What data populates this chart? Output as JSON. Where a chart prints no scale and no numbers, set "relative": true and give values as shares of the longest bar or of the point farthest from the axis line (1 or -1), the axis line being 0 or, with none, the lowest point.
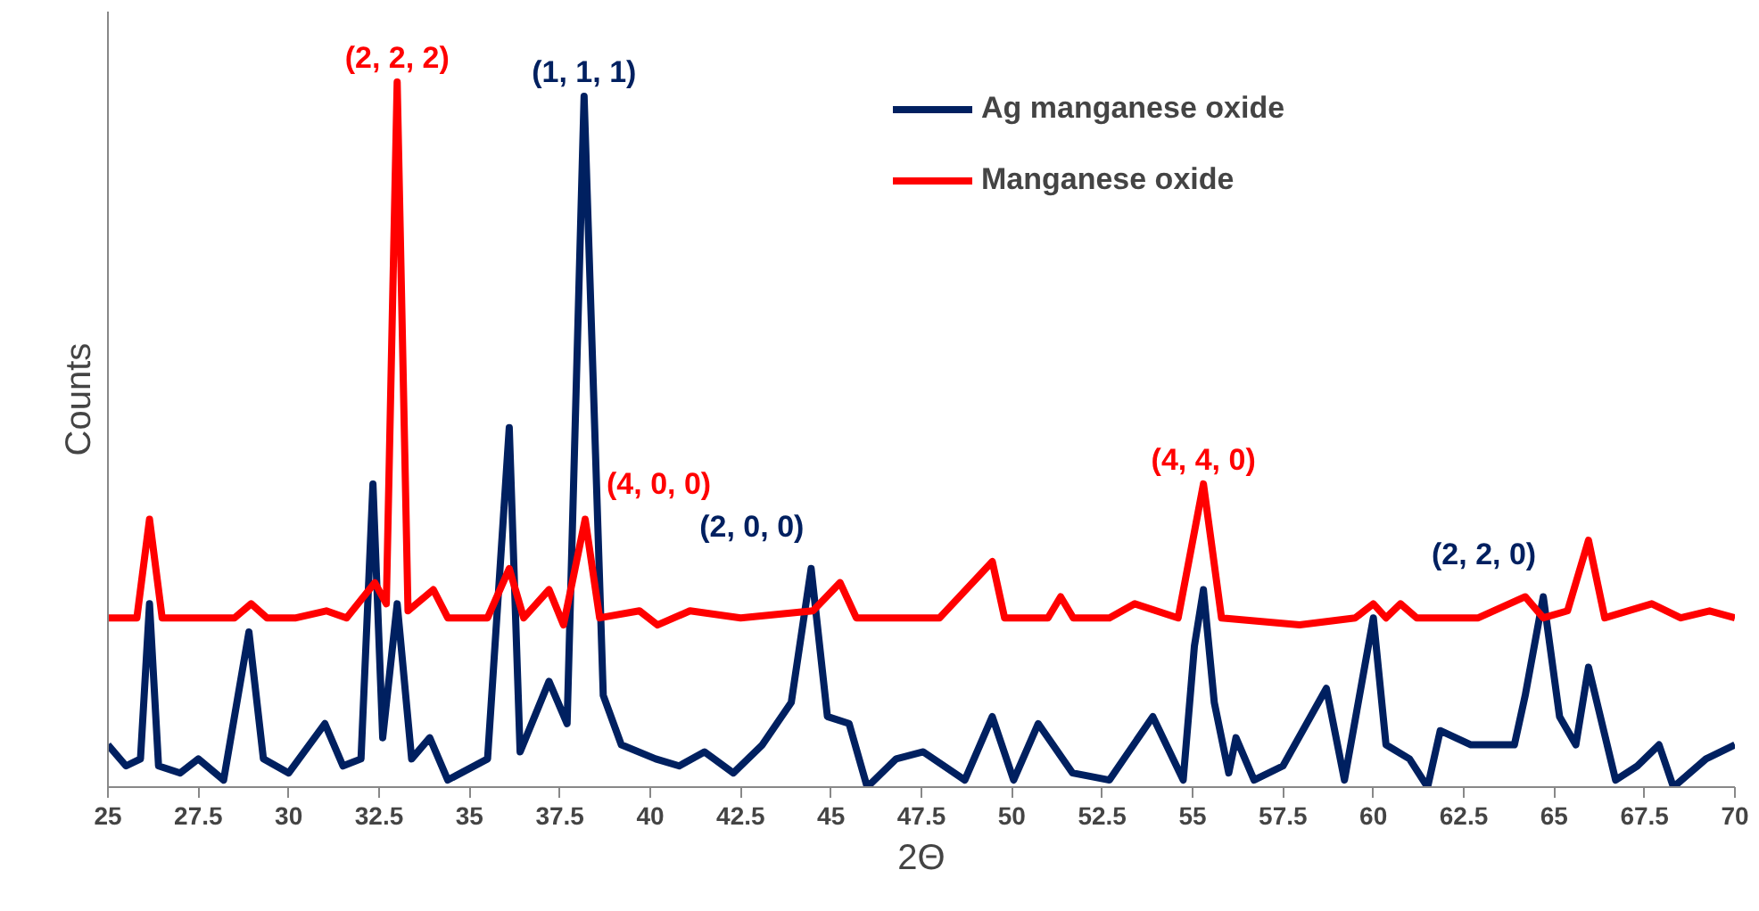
{
  "chart_data": {
    "type": "line",
    "relative": true,
    "xlabel": "2Θ",
    "ylabel": "Counts",
    "xlim": [
      25,
      70
    ],
    "xticks": [
      25,
      27.5,
      30,
      32.5,
      35,
      37.5,
      40,
      42.5,
      45,
      47.5,
      50,
      52.5,
      55,
      57.5,
      60,
      62.5,
      65,
      67.5,
      70
    ],
    "grid": false,
    "legend": "top right",
    "marker": "none",
    "line_style": "solid",
    "series": [
      {
        "name": "Ag manganese oxide",
        "color": "#002060",
        "x": [
          25,
          25.5,
          25.9,
          26.15,
          26.4,
          27,
          27.5,
          28.2,
          28.9,
          29.3,
          30,
          31.0,
          31.5,
          32.0,
          32.33,
          32.6,
          33.0,
          33.4,
          33.9,
          34.4,
          35.5,
          36.1,
          36.4,
          37.2,
          37.7,
          38.17,
          38.7,
          39.2,
          40.15,
          40.8,
          41.5,
          42.3,
          43.1,
          43.9,
          44.45,
          44.9,
          45.5,
          46.0,
          46.8,
          47.55,
          48.7,
          49.46,
          50.05,
          50.73,
          51.68,
          52.7,
          53.9,
          54.74,
          55.05,
          55.3,
          55.6,
          56.0,
          56.2,
          56.7,
          57.5,
          58.7,
          59.2,
          60.0,
          60.35,
          61.0,
          61.5,
          61.85,
          62.7,
          63.9,
          64.2,
          64.7,
          65.15,
          65.6,
          65.95,
          66.7,
          67.3,
          67.9,
          68.3,
          69.2,
          70
        ],
        "values": [
          0.06,
          0.03,
          0.04,
          0.26,
          0.03,
          0.02,
          0.04,
          0.01,
          0.22,
          0.04,
          0.02,
          0.09,
          0.03,
          0.04,
          0.43,
          0.07,
          0.26,
          0.04,
          0.07,
          0.01,
          0.04,
          0.51,
          0.05,
          0.15,
          0.09,
          0.98,
          0.13,
          0.06,
          0.04,
          0.03,
          0.05,
          0.02,
          0.06,
          0.12,
          0.31,
          0.1,
          0.09,
          0,
          0.04,
          0.05,
          0.01,
          0.1,
          0.01,
          0.09,
          0.02,
          0.01,
          0.1,
          0.01,
          0.2,
          0.28,
          0.12,
          0.02,
          0.07,
          0.01,
          0.03,
          0.14,
          0.01,
          0.24,
          0.06,
          0.04,
          0,
          0.08,
          0.06,
          0.06,
          0.13,
          0.27,
          0.1,
          0.06,
          0.17,
          0.01,
          0.03,
          0.06,
          0,
          0.04,
          0.06
        ]
      },
      {
        "name": "Manganese oxide",
        "color": "#ff0000",
        "x": [
          25,
          25.8,
          26.15,
          26.5,
          27.5,
          28.5,
          28.96,
          29.4,
          30.2,
          31.04,
          31.6,
          32.38,
          32.7,
          33.0,
          33.3,
          34.0,
          34.4,
          35.5,
          36.1,
          36.5,
          37.2,
          37.6,
          38.2,
          38.6,
          39.7,
          40.2,
          41.1,
          42.5,
          44.5,
          45.25,
          45.7,
          46.07,
          48,
          49.46,
          49.8,
          51.0,
          51.35,
          51.7,
          52.7,
          53.4,
          54.6,
          55.3,
          55.8,
          57.96,
          59.5,
          60.0,
          60.35,
          60.75,
          61.2,
          62.9,
          64.2,
          64.7,
          65.37,
          65.95,
          66.4,
          67.7,
          68.5,
          69.3,
          70
        ],
        "values": [
          0.24,
          0.24,
          0.38,
          0.24,
          0.24,
          0.24,
          0.26,
          0.24,
          0.24,
          0.25,
          0.24,
          0.29,
          0.26,
          1.0,
          0.25,
          0.28,
          0.24,
          0.24,
          0.31,
          0.24,
          0.28,
          0.23,
          0.38,
          0.24,
          0.25,
          0.23,
          0.25,
          0.24,
          0.25,
          0.29,
          0.24,
          0.24,
          0.24,
          0.32,
          0.24,
          0.24,
          0.27,
          0.24,
          0.24,
          0.26,
          0.24,
          0.43,
          0.24,
          0.23,
          0.24,
          0.26,
          0.24,
          0.26,
          0.24,
          0.24,
          0.27,
          0.24,
          0.25,
          0.35,
          0.24,
          0.26,
          0.24,
          0.25,
          0.24
        ]
      }
    ],
    "annotations": [
      {
        "text": "(2, 2, 2)",
        "x": 33.0,
        "y": 1.0
      },
      {
        "text": "(1, 1, 1)",
        "x": 38.17,
        "y": 0.98
      },
      {
        "text": "(4, 0, 0)",
        "x": 38.2,
        "y": 0.38
      },
      {
        "text": "(2, 0, 0)",
        "x": 44.45,
        "y": 0.31
      },
      {
        "text": "(4, 4, 0)",
        "x": 55.3,
        "y": 0.43
      },
      {
        "text": "(2, 2, 0)",
        "x": 64.7,
        "y": 0.27
      }
    ]
  }
}
